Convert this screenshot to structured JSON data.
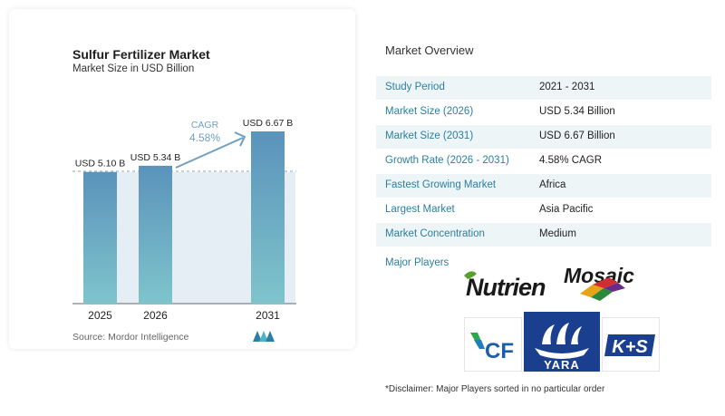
{
  "chart_data": {
    "type": "bar",
    "title": "Sulfur Fertilizer Market",
    "subtitle": "Market Size in USD Billion",
    "categories": [
      "2025",
      "2026",
      "2031"
    ],
    "values": [
      5.1,
      5.34,
      6.67
    ],
    "value_labels": [
      "USD 5.10 B",
      "USD 5.34 B",
      "USD 6.67 B"
    ],
    "cagr_label": "CAGR",
    "cagr_value": "4.58%",
    "grid": false,
    "legend": "none"
  },
  "source": "Source:  Mordor Intelligence",
  "overview": {
    "title": "Market Overview",
    "rows": [
      {
        "label": "Study Period",
        "value": "2021 - 2031"
      },
      {
        "label": "Market Size (2026)",
        "value": "USD 5.34 Billion"
      },
      {
        "label": "Market Size (2031)",
        "value": "USD 6.67 Billion"
      },
      {
        "label": "Growth Rate (2026 - 2031)",
        "value": "4.58% CAGR"
      },
      {
        "label": "Fastest Growing Market",
        "value": "Africa"
      },
      {
        "label": "Largest Market",
        "value": "Asia Pacific"
      },
      {
        "label": "Market Concentration",
        "value": "Medium"
      }
    ],
    "players_label": "Major Players",
    "players": [
      "Nutrien",
      "Mosaic",
      "CF",
      "YARA",
      "K+S"
    ]
  },
  "disclaimer": "*Disclaimer: Major Players sorted in no particular order",
  "colors": {
    "bar_top": "#5a93bb",
    "bar_bottom": "#7fc4cc",
    "accent": "#2b7fa0",
    "row_shade": "#eef5f7"
  }
}
